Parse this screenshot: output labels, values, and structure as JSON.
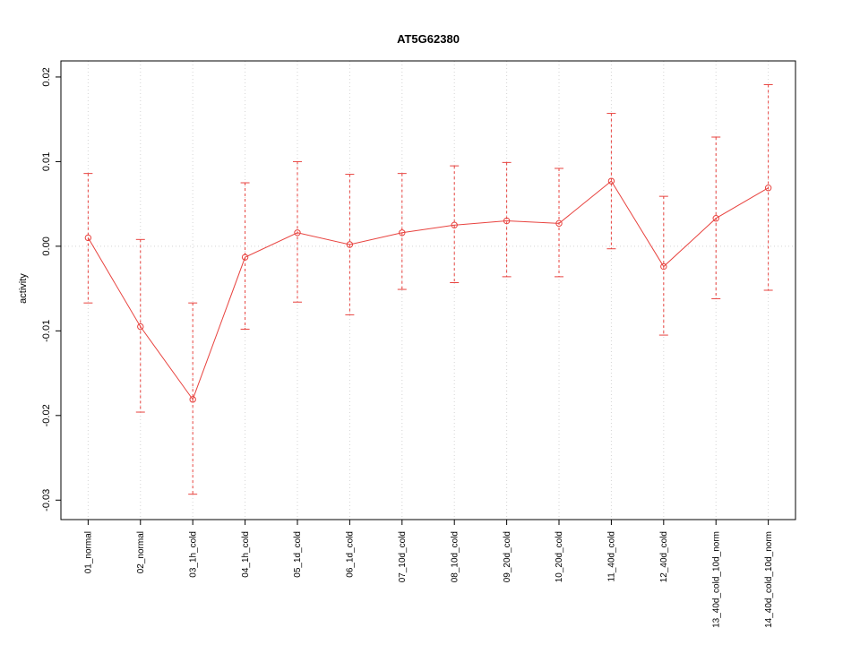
{
  "chart_data": {
    "type": "line",
    "title": "AT5G62380",
    "xlabel": "",
    "ylabel": "activity",
    "categories": [
      "01_normal",
      "02_normal",
      "03_1h_cold",
      "04_1h_cold",
      "05_1d_cold",
      "06_1d_cold",
      "07_10d_cold",
      "08_10d_cold",
      "09_20d_cold",
      "10_20d_cold",
      "11_40d_cold",
      "12_40d_cold",
      "13_40d_cold_10d_norm",
      "14_40d_cold_10d_norm"
    ],
    "series": [
      {
        "name": "activity",
        "values": [
          0.001,
          -0.0095,
          -0.0181,
          -0.0013,
          0.0016,
          0.0002,
          0.0016,
          0.0025,
          0.003,
          0.0027,
          0.0077,
          -0.0024,
          0.0033,
          0.0069
        ],
        "err_low": [
          -0.0067,
          -0.0196,
          -0.0293,
          -0.0098,
          -0.0066,
          -0.0081,
          -0.0051,
          -0.0043,
          -0.0036,
          -0.0036,
          -0.0003,
          -0.0105,
          -0.0062,
          -0.0052
        ],
        "err_high": [
          0.0086,
          0.0008,
          -0.0067,
          0.0075,
          0.01,
          0.0085,
          0.0086,
          0.0095,
          0.0099,
          0.0092,
          0.0157,
          0.0059,
          0.0129,
          0.0191
        ]
      }
    ],
    "ylim": [
      -0.0323,
      0.0219
    ],
    "yticks": [
      -0.03,
      -0.02,
      -0.01,
      0,
      0.01,
      0.02
    ],
    "ytick_labels": [
      "-0.03",
      "-0.02",
      "-0.01",
      "0.00",
      "0.01",
      "0.02"
    ],
    "legend": "none",
    "grid": "dotted vertical gridline at each category; dotted horizontal line at y=0",
    "marker": "open-circle",
    "error_bar_style": "dashed vertical line with solid caps",
    "colors": {
      "series": "#e8433f",
      "grid": "#d4d4d4",
      "axis": "#000000",
      "background": "#ffffff"
    }
  }
}
